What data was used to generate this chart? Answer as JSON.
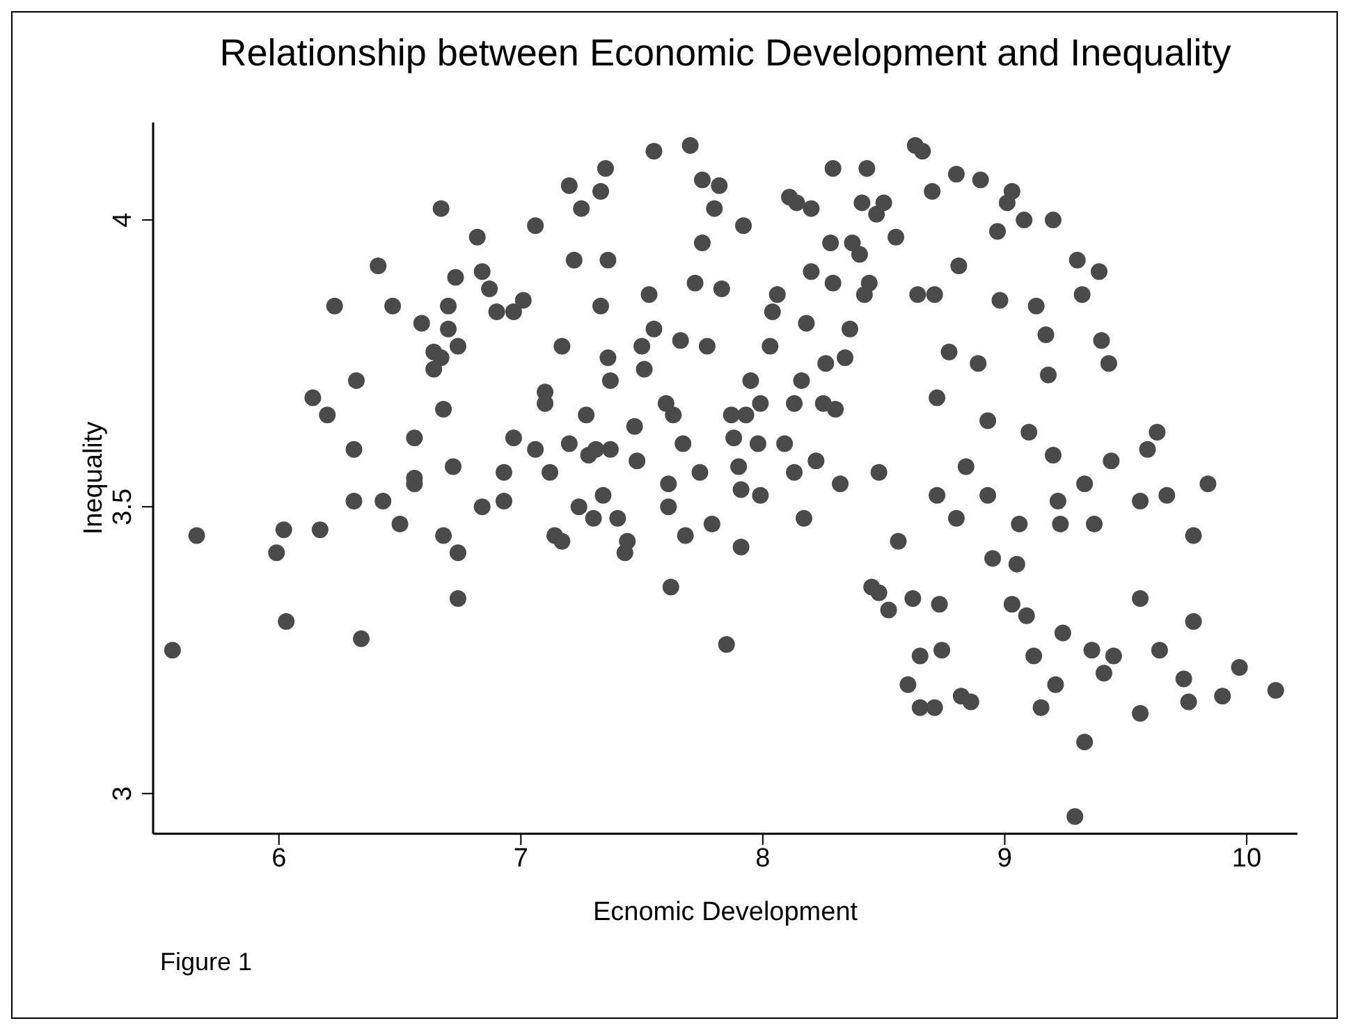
{
  "chart_data": {
    "type": "scatter",
    "title": "Relationship between Economic Development and Inequality",
    "xlabel": "Ecnomic Development",
    "ylabel": "Inequality",
    "annotations": [
      "Figure 1"
    ],
    "color": "#4a4a4a",
    "marker": "circle",
    "xlim": [
      5.48,
      10.21
    ],
    "ylim": [
      2.93,
      4.17
    ],
    "xticks": [
      6,
      7,
      8,
      9,
      10
    ],
    "yticks": [
      3,
      3.5,
      4
    ],
    "x": [
      5.56,
      5.66,
      5.99,
      6.02,
      6.03,
      6.17,
      6.14,
      6.2,
      6.23,
      6.31,
      6.31,
      6.32,
      6.34,
      6.43,
      6.41,
      6.47,
      6.5,
      6.56,
      6.56,
      6.56,
      6.59,
      6.64,
      6.67,
      6.64,
      6.67,
      6.68,
      6.68,
      6.7,
      6.73,
      6.7,
      6.72,
      6.74,
      6.74,
      6.74,
      6.82,
      6.87,
      6.84,
      6.9,
      6.84,
      6.93,
      6.97,
      7.01,
      6.97,
      6.93,
      7.06,
      7.06,
      7.1,
      7.1,
      7.12,
      7.14,
      7.17,
      7.17,
      7.2,
      7.2,
      7.22,
      7.24,
      7.25,
      7.27,
      7.28,
      7.3,
      7.31,
      7.33,
      7.33,
      7.34,
      7.35,
      7.36,
      7.37,
      7.37,
      7.36,
      7.4,
      7.43,
      7.44,
      7.47,
      7.48,
      7.5,
      7.51,
      7.53,
      7.55,
      7.55,
      7.6,
      7.61,
      7.61,
      7.63,
      7.62,
      7.66,
      7.67,
      7.68,
      7.7,
      7.72,
      7.74,
      7.75,
      7.75,
      7.77,
      7.79,
      7.8,
      7.82,
      7.83,
      7.85,
      7.87,
      7.88,
      7.9,
      7.91,
      7.92,
      7.91,
      7.93,
      7.95,
      7.98,
      7.99,
      7.99,
      8.03,
      8.04,
      8.06,
      8.09,
      8.11,
      8.13,
      8.13,
      8.14,
      8.16,
      8.17,
      8.18,
      8.2,
      8.2,
      8.22,
      8.25,
      8.26,
      8.28,
      8.29,
      8.29,
      8.3,
      8.32,
      8.34,
      8.36,
      8.37,
      8.4,
      8.41,
      8.42,
      8.43,
      8.44,
      8.45,
      8.47,
      8.48,
      8.48,
      8.5,
      8.52,
      8.55,
      8.56,
      8.6,
      8.62,
      8.63,
      8.64,
      8.65,
      8.65,
      8.66,
      8.7,
      8.71,
      8.71,
      8.72,
      8.72,
      8.73,
      8.74,
      8.77,
      8.8,
      8.8,
      8.81,
      8.82,
      8.84,
      8.86,
      8.89,
      8.9,
      8.93,
      8.93,
      8.95,
      8.97,
      8.98,
      9.01,
      9.03,
      9.03,
      9.05,
      9.06,
      9.08,
      9.09,
      9.1,
      9.12,
      9.13,
      9.15,
      9.17,
      9.18,
      9.2,
      9.2,
      9.21,
      9.22,
      9.23,
      9.24,
      9.3,
      9.32,
      9.33,
      9.33,
      9.36,
      9.37,
      9.39,
      9.4,
      9.41,
      9.43,
      9.44,
      9.45,
      9.29,
      9.56,
      9.56,
      9.56,
      9.59,
      9.63,
      9.64,
      9.67,
      9.74,
      9.76,
      9.78,
      9.78,
      9.84,
      9.9,
      9.97,
      10.12
    ],
    "values": [
      3.25,
      3.45,
      3.42,
      3.46,
      3.3,
      3.46,
      3.69,
      3.66,
      3.85,
      3.51,
      3.6,
      3.72,
      3.27,
      3.51,
      3.92,
      3.85,
      3.47,
      3.62,
      3.55,
      3.54,
      3.82,
      3.77,
      4.02,
      3.74,
      3.76,
      3.67,
      3.45,
      3.85,
      3.9,
      3.81,
      3.57,
      3.78,
      3.42,
      3.34,
      3.97,
      3.88,
      3.91,
      3.84,
      3.5,
      3.51,
      3.84,
      3.86,
      3.62,
      3.56,
      3.99,
      3.6,
      3.7,
      3.68,
      3.56,
      3.45,
      3.44,
      3.78,
      3.61,
      4.06,
      3.93,
      3.5,
      4.02,
      3.66,
      3.59,
      3.48,
      3.6,
      4.05,
      3.85,
      3.52,
      4.09,
      3.76,
      3.72,
      3.6,
      3.93,
      3.48,
      3.42,
      3.44,
      3.64,
      3.58,
      3.78,
      3.74,
      3.87,
      4.12,
      3.81,
      3.68,
      3.54,
      3.5,
      3.66,
      3.36,
      3.79,
      3.61,
      3.45,
      4.13,
      3.89,
      3.56,
      4.07,
      3.96,
      3.78,
      3.47,
      4.02,
      4.06,
      3.88,
      3.26,
      3.66,
      3.62,
      3.57,
      3.53,
      3.99,
      3.43,
      3.66,
      3.72,
      3.61,
      3.52,
      3.68,
      3.78,
      3.84,
      3.87,
      3.61,
      4.04,
      3.68,
      3.56,
      4.03,
      3.72,
      3.48,
      3.82,
      3.91,
      4.02,
      3.58,
      3.68,
      3.75,
      3.96,
      3.89,
      4.09,
      3.67,
      3.54,
      3.76,
      3.81,
      3.96,
      3.94,
      4.03,
      3.87,
      4.09,
      3.89,
      3.36,
      4.01,
      3.56,
      3.35,
      4.03,
      3.32,
      3.97,
      3.44,
      3.19,
      3.34,
      4.13,
      3.87,
      3.24,
      3.15,
      4.12,
      4.05,
      3.87,
      3.15,
      3.69,
      3.52,
      3.33,
      3.25,
      3.77,
      4.08,
      3.48,
      3.92,
      3.17,
      3.57,
      3.16,
      3.75,
      4.07,
      3.65,
      3.52,
      3.41,
      3.98,
      3.86,
      4.03,
      4.05,
      3.33,
      3.4,
      3.47,
      4.0,
      3.31,
      3.63,
      3.24,
      3.85,
      3.15,
      3.8,
      3.73,
      3.59,
      4.0,
      3.19,
      3.51,
      3.47,
      3.28,
      3.93,
      3.87,
      3.54,
      3.09,
      3.25,
      3.47,
      3.91,
      3.79,
      3.21,
      3.75,
      3.58,
      3.24,
      2.96,
      3.51,
      3.34,
      3.14,
      3.6,
      3.63,
      3.25,
      3.52,
      3.2,
      3.16,
      3.45,
      3.3,
      3.54,
      3.17,
      3.22,
      3.18
    ]
  }
}
